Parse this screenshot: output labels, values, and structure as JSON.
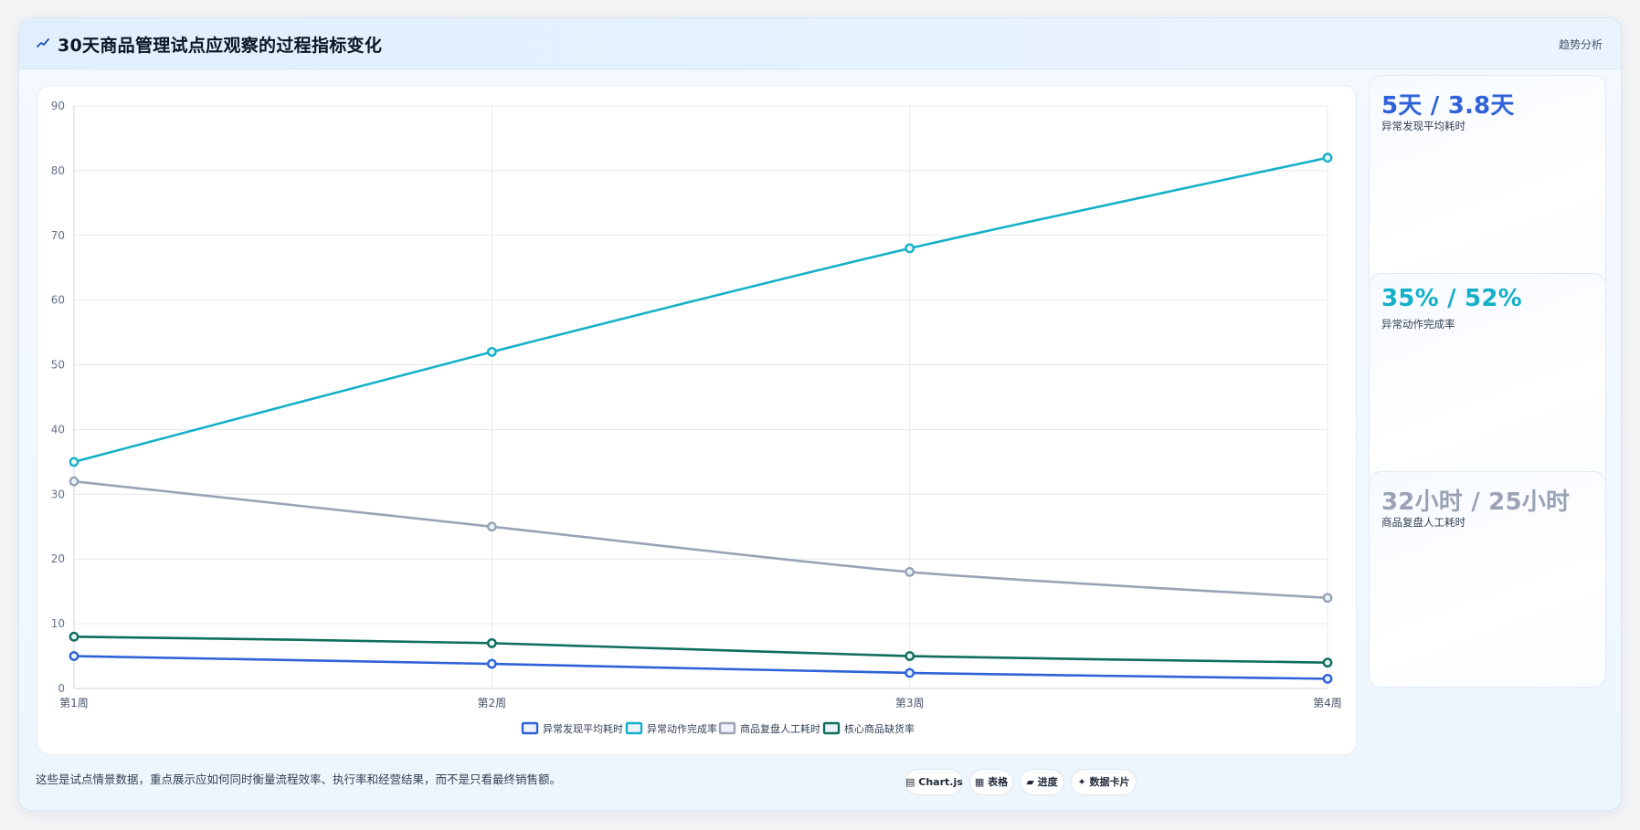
{
  "header": {
    "title": "30天商品管理试点应观察的过程指标变化",
    "link_label": "趋势分析"
  },
  "colors": {
    "blue": "#2f62d8",
    "cyan": "#14b0c8",
    "gray": "#9aa3b6",
    "teal": "#0f6e5c"
  },
  "chart_data": {
    "type": "line",
    "categories": [
      "第1周",
      "第2周",
      "第3周",
      "第4周"
    ],
    "ylim": [
      0,
      90
    ],
    "y_ticks": [
      0,
      10,
      20,
      30,
      40,
      50,
      60,
      70,
      80,
      90
    ],
    "grid": true,
    "legend_position": "bottom",
    "series": [
      {
        "name": "异常发现平均耗时",
        "color": "#2f62d8",
        "values": [
          5,
          3.8,
          2.4,
          1.5
        ]
      },
      {
        "name": "异常动作完成率",
        "color": "#14b0c8",
        "values": [
          35,
          52,
          68,
          82
        ]
      },
      {
        "name": "商品复盘人工耗时",
        "color": "#9aa3b6",
        "values": [
          32,
          25,
          18,
          14
        ]
      },
      {
        "name": "核心商品缺货率",
        "color": "#0f6e5c",
        "values": [
          8,
          7,
          5,
          4
        ]
      }
    ]
  },
  "side_cards": [
    {
      "value": "5天 / 3.8天",
      "label": "异常发现平均耗时",
      "color": "#2f62d8"
    },
    {
      "value": "35% / 52%",
      "label": "异常动作完成率",
      "color": "#14b0c8"
    },
    {
      "value": "32小时 / 25小时",
      "label": "商品复盘人工耗时",
      "color": "#9aa3b6"
    }
  ],
  "footer": {
    "note": "这些是试点情景数据，重点展示应如何同时衡量流程效率、执行率和经营结果，而不是只看最终销售额。",
    "tabs": [
      {
        "icon": "▤",
        "label": "Chart.js"
      },
      {
        "icon": "▦",
        "label": "表格"
      },
      {
        "icon": "▰",
        "label": "进度"
      },
      {
        "icon": "✦",
        "label": "数据卡片"
      }
    ]
  }
}
